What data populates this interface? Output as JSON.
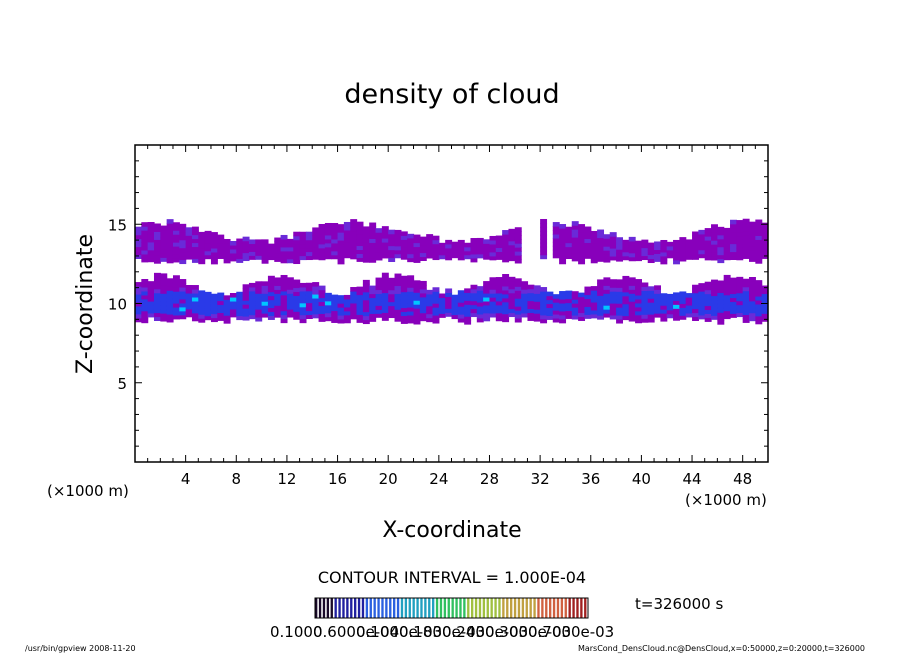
{
  "chart_data": {
    "type": "heatmap",
    "title": "density of cloud",
    "xlabel": "X-coordinate",
    "ylabel": "Z-coordinate",
    "x_unit_left": "(×1000 m)",
    "x_unit_right": "(×1000 m)",
    "xlim": [
      0,
      50
    ],
    "ylim": [
      0,
      20
    ],
    "x_ticks": [
      "4",
      "8",
      "12",
      "16",
      "20",
      "24",
      "28",
      "32",
      "36",
      "40",
      "44",
      "48"
    ],
    "y_ticks": [
      "5",
      "10",
      "15"
    ],
    "contour_interval": "CONTOUR INTERVAL = 1.000E-04",
    "time_label": "t=326000 s",
    "colorbar_labels": [
      "0.1000",
      "0.6000e-04",
      "0.1000e-03",
      "0.1800e-03",
      "0.2400e-03",
      "0.3000e-03",
      "0.7000e-03"
    ],
    "colors": {
      "purple": "#8800bb",
      "violet": "#6a2ad8",
      "blue": "#2a3ae8",
      "cyan": "#00c8ff"
    },
    "bands": [
      {
        "x": [
          0,
          50
        ],
        "z": [
          8.7,
          11.3
        ],
        "level": "blue"
      },
      {
        "x": [
          0,
          50
        ],
        "z": [
          12.4,
          15.0
        ],
        "level": "purple"
      }
    ]
  },
  "footer": {
    "left": "/usr/bin/gpview   2008-11-20",
    "right": "MarsCond_DensCloud.nc@DensCloud,x=0:50000,z=0:20000,t=326000"
  }
}
